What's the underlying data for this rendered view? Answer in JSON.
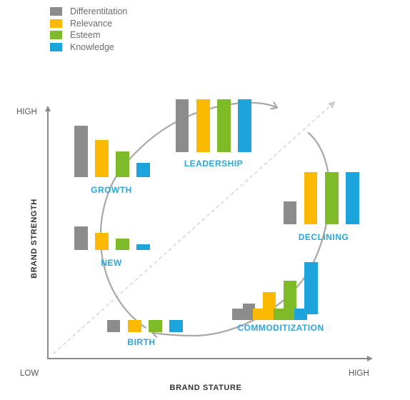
{
  "legend": [
    {
      "label": "Differentitation",
      "color": "#8c8c8c"
    },
    {
      "label": "Relevance",
      "color": "#fbba00"
    },
    {
      "label": "Esteem",
      "color": "#7fbb29"
    },
    {
      "label": "Knowledge",
      "color": "#1ea4dd"
    }
  ],
  "axes": {
    "y_title": "BRAND STRENGTH",
    "x_title": "BRAND STATURE",
    "y_high": "HIGH",
    "x_low": "LOW",
    "x_high": "HIGH"
  },
  "stages": [
    {
      "label": "LEADERSHIP"
    },
    {
      "label": "GROWTH"
    },
    {
      "label": "DECLINING"
    },
    {
      "label": "NEW"
    },
    {
      "label": "COMMODITIZATION"
    },
    {
      "label": "BIRTH"
    }
  ],
  "colors": {
    "axis": "#8a8a8a",
    "cycle_arrow": "#a8a8a8",
    "diagonal": "#cfcfcf",
    "stage_label": "#29a6dc"
  }
}
